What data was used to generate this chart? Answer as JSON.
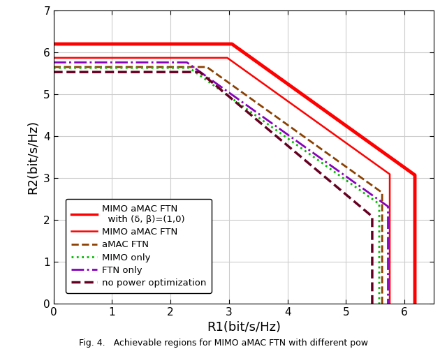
{
  "title": "",
  "xlabel": "R1(bit/s/Hz)",
  "ylabel": "R2(bit/s/Hz)",
  "xlim": [
    0,
    6.5
  ],
  "ylim": [
    0,
    7
  ],
  "xticks": [
    0,
    1,
    2,
    3,
    4,
    5,
    6
  ],
  "yticks": [
    0,
    1,
    2,
    3,
    4,
    5,
    6,
    7
  ],
  "figcaption": "Fig. 4.   Achievable regions for MIMO aMAC FTN with different pow",
  "curves": [
    {
      "label": "MIMO aMAC FTN\n  with (δ, β)=(1,0)",
      "color": "#FF0000",
      "linewidth": 3.5,
      "linestyle": "solid",
      "x": [
        0,
        3.05,
        6.18,
        6.18
      ],
      "y": [
        6.2,
        6.2,
        3.07,
        0
      ]
    },
    {
      "label": "MIMO aMAC FTN",
      "color": "#FF0000",
      "linewidth": 1.8,
      "linestyle": "solid",
      "x": [
        0,
        2.97,
        5.75,
        5.75
      ],
      "y": [
        5.87,
        5.87,
        3.09,
        0
      ]
    },
    {
      "label": "aMAC FTN",
      "color": "#8B4000",
      "linewidth": 2.0,
      "linestyle": "dashed",
      "x": [
        0,
        2.62,
        5.62,
        5.62
      ],
      "y": [
        5.65,
        5.65,
        2.65,
        0
      ]
    },
    {
      "label": "MIMO only",
      "color": "#00BB00",
      "linewidth": 2.0,
      "linestyle": "dotted",
      "x": [
        0,
        2.32,
        5.57,
        5.57
      ],
      "y": [
        5.63,
        5.63,
        2.38,
        0
      ]
    },
    {
      "label": "FTN only",
      "color": "#8800BB",
      "linewidth": 2.0,
      "linestyle": "dashdot",
      "x": [
        0,
        2.28,
        5.72,
        5.72
      ],
      "y": [
        5.76,
        5.76,
        2.32,
        0
      ]
    },
    {
      "label": "no power optimization",
      "color": "#660022",
      "linewidth": 2.5,
      "linestyle": "dashed",
      "x": [
        0,
        2.5,
        5.45,
        5.45
      ],
      "y": [
        5.53,
        5.53,
        2.08,
        0
      ]
    }
  ],
  "grid": true,
  "background_color": "#ffffff"
}
